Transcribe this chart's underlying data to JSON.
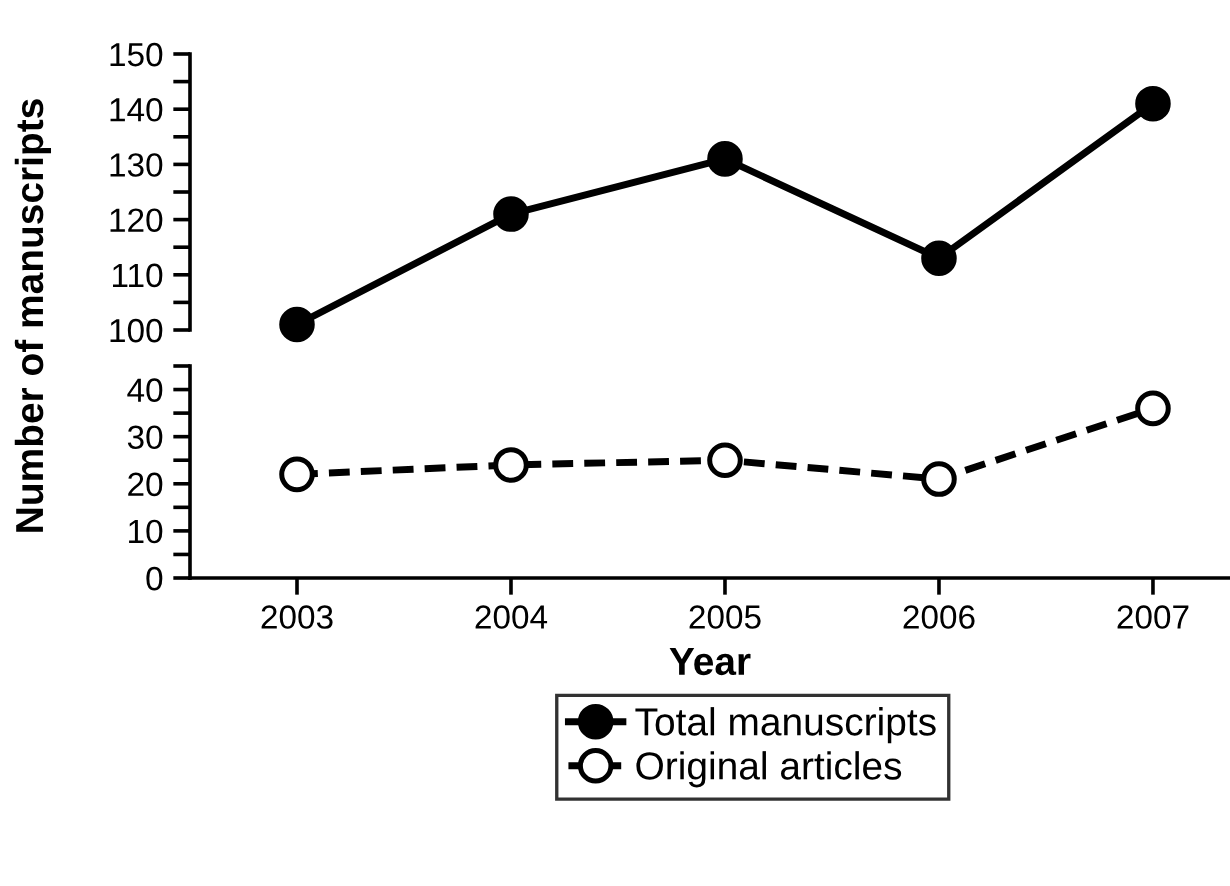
{
  "chart_data": [
    {
      "type": "line",
      "categories": [
        "2003",
        "2004",
        "2005",
        "2006",
        "2007"
      ],
      "ylabel": "Number of manuscripts",
      "series": [
        {
          "name": "Total manuscripts",
          "color": "#000000",
          "values": [
            101,
            121,
            131,
            113,
            141
          ],
          "marker": "circle",
          "line_style": "solid"
        }
      ],
      "ylim": [
        100,
        150
      ],
      "yticks": [
        100,
        {
          "value": 105,
          "label": null
        },
        110,
        {
          "value": 115,
          "label": null
        },
        120,
        {
          "value": 125,
          "label": null
        },
        130,
        {
          "value": 135,
          "label": null
        },
        140,
        {
          "value": 145,
          "label": null
        },
        150
      ],
      "tick_labels": "y",
      "grid": false,
      "legend": "bottom"
    },
    {
      "type": "line",
      "categories": [
        "2003",
        "2004",
        "2005",
        "2006",
        "2007"
      ],
      "xlabel": "Year",
      "series": [
        {
          "name": "Original articles",
          "color": "#000000",
          "values": [
            22,
            24,
            25,
            21,
            36
          ],
          "marker": "circle",
          "line_style": "dashed"
        }
      ],
      "ylim": [
        0,
        45
      ],
      "yticks": [
        0,
        {
          "value": 5,
          "label": null
        },
        10,
        {
          "value": 15,
          "label": null
        },
        20,
        {
          "value": 25,
          "label": null
        },
        30,
        {
          "value": 35,
          "label": null
        },
        40,
        {
          "value": 45,
          "label": null
        }
      ],
      "grid": false,
      "legend": "bottom"
    }
  ]
}
